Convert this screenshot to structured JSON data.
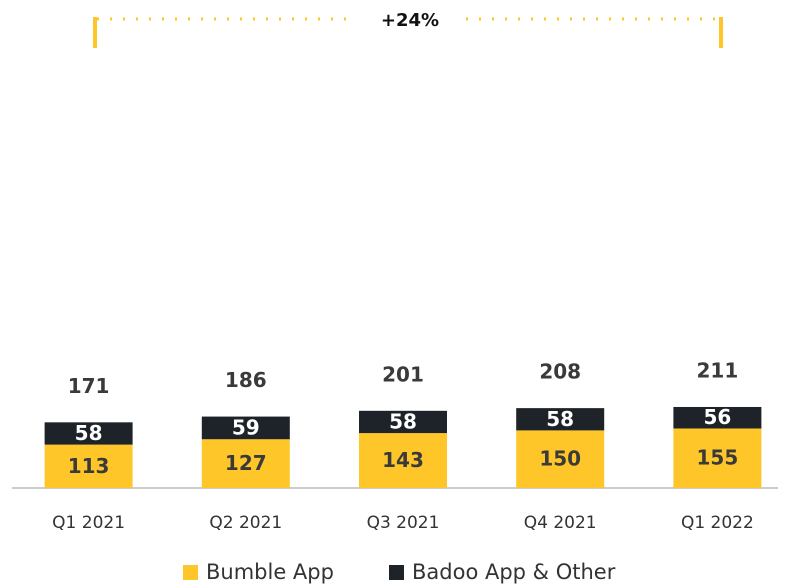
{
  "chart_data": {
    "type": "stacked_bar",
    "annotation": "+24%",
    "categories": [
      "Q1 2021",
      "Q2 2021",
      "Q3 2021",
      "Q4 2021",
      "Q1 2022"
    ],
    "series": [
      {
        "name": "Bumble App",
        "color": "#ffc629",
        "values": [
          113,
          127,
          143,
          150,
          155
        ]
      },
      {
        "name": "Badoo App & Other",
        "color": "#1e2329",
        "values": [
          58,
          59,
          58,
          58,
          56
        ]
      }
    ],
    "totals": [
      171,
      186,
      201,
      208,
      211
    ],
    "ylim": [
      0,
      1000
    ]
  }
}
